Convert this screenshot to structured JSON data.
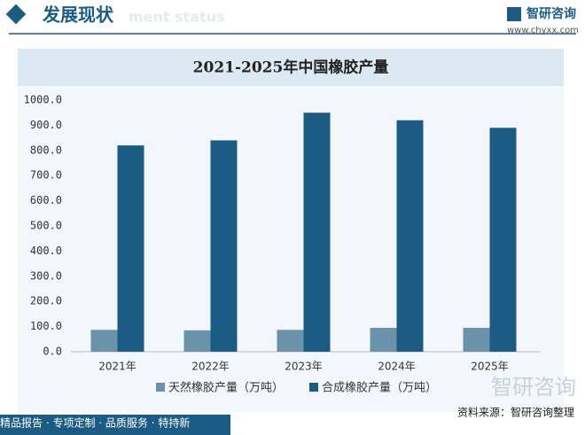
{
  "header": {
    "title": "发展现状",
    "subtitle": "ment status",
    "logo": "智研咨询",
    "url": "www.chyxx.com"
  },
  "chart_data": {
    "type": "bar",
    "title": "2021-2025年中国橡胶产量",
    "categories": [
      "2021年",
      "2022年",
      "2023年",
      "2024年",
      "2025年"
    ],
    "series": [
      {
        "name": "天然橡胶产量（万吨）",
        "color": "#6a93ab",
        "values": [
          87,
          85,
          87,
          95,
          95
        ]
      },
      {
        "name": "合成橡胶产量（万吨）",
        "color": "#1b5b84",
        "values": [
          820,
          840,
          950,
          920,
          890
        ]
      }
    ],
    "ylim": [
      0,
      1000
    ],
    "yticks": [
      {
        "value": 0,
        "label": "0.0"
      },
      {
        "value": 100,
        "label": "100.0"
      },
      {
        "value": 200,
        "label": "200.0"
      },
      {
        "value": 300,
        "label": "300.0"
      },
      {
        "value": 400,
        "label": "400.0"
      },
      {
        "value": 500,
        "label": "500.0"
      },
      {
        "value": 600,
        "label": "600.0"
      },
      {
        "value": 700,
        "label": "700.0"
      },
      {
        "value": 800,
        "label": "800.0"
      },
      {
        "value": 900,
        "label": "900.0"
      },
      {
        "value": 1000,
        "label": "1000.0"
      }
    ],
    "grid": false
  },
  "footer": {
    "slogan": "精品报告 · 专项定制 · 品质服务 · 特持新",
    "source": "资料来源：智研咨询整理",
    "watermark": "智研咨询"
  }
}
